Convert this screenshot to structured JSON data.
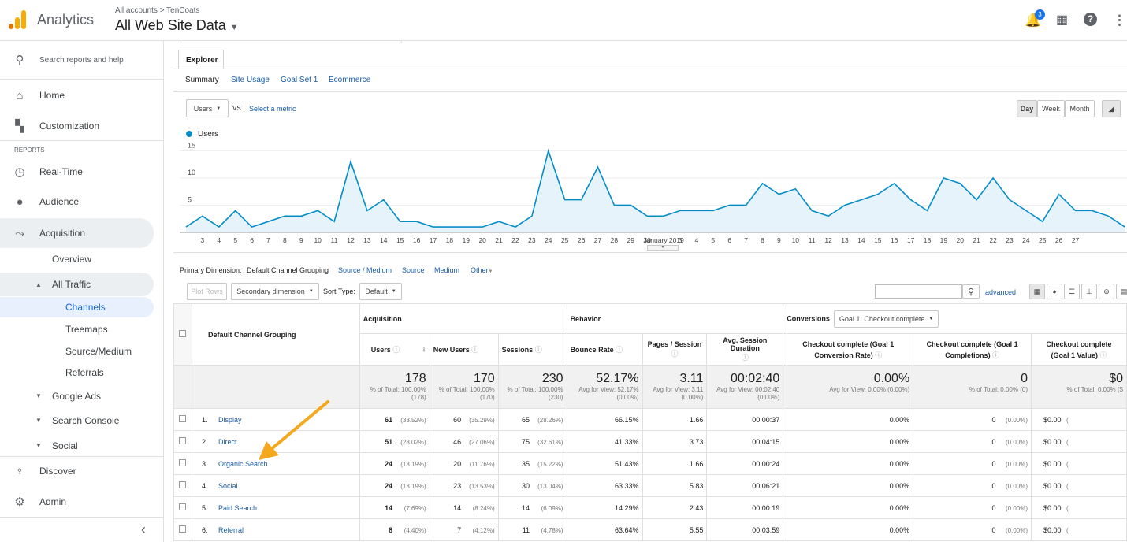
{
  "app": {
    "name": "Analytics",
    "breadcrumb": "All accounts  >  TenCoats",
    "view": "All Web Site Data",
    "notification_count": "3"
  },
  "colors": {
    "accent": "#1a73e8",
    "logo_orange": "#f9ab00",
    "logo_dark": "#e37400",
    "line": "#058dc7",
    "link": "#1a5ca5"
  },
  "sidebar": {
    "search_placeholder": "Search reports and help",
    "home": "Home",
    "customization": "Customization",
    "reports_heading": "REPORTS",
    "realtime": "Real-Time",
    "audience": "Audience",
    "acquisition": "Acquisition",
    "overview": "Overview",
    "all_traffic": "All Traffic",
    "channels": "Channels",
    "treemaps": "Treemaps",
    "source_medium": "Source/Medium",
    "referrals": "Referrals",
    "google_ads": "Google Ads",
    "search_console": "Search Console",
    "social": "Social",
    "discover": "Discover",
    "admin": "Admin",
    "collapse": "‹"
  },
  "explorer": {
    "tab": "Explorer",
    "subtabs": [
      "Summary",
      "Site Usage",
      "Goal Set 1",
      "Ecommerce"
    ]
  },
  "metric": {
    "select": "Users",
    "vs": "VS.",
    "select_metric": "Select a metric",
    "legend": "Users"
  },
  "range": {
    "day": "Day",
    "week": "Week",
    "month": "Month"
  },
  "chart_data": {
    "type": "area",
    "series": [
      {
        "name": "Users",
        "values": [
          1,
          3,
          1,
          4,
          1,
          2,
          3,
          3,
          4,
          2,
          13,
          4,
          6,
          2,
          2,
          1,
          1,
          1,
          1,
          2,
          1,
          3,
          15,
          6,
          6,
          12,
          5,
          5,
          3,
          3,
          4,
          4,
          4,
          5,
          5,
          9,
          7,
          8,
          4,
          3,
          5,
          6,
          7,
          9,
          6,
          4,
          10,
          9,
          6,
          10,
          6,
          4,
          2,
          7,
          4,
          4,
          3,
          1
        ]
      }
    ],
    "x_tick_labels": [
      "3",
      "4",
      "5",
      "6",
      "7",
      "8",
      "9",
      "10",
      "11",
      "12",
      "13",
      "14",
      "15",
      "16",
      "17",
      "18",
      "19",
      "20",
      "21",
      "22",
      "23",
      "24",
      "25",
      "26",
      "27",
      "28",
      "29",
      "30",
      "January 2019",
      "3",
      "4",
      "5",
      "6",
      "7",
      "8",
      "9",
      "10",
      "11",
      "12",
      "13",
      "14",
      "15",
      "16",
      "17",
      "18",
      "19",
      "20",
      "21",
      "22",
      "23",
      "24",
      "25",
      "26",
      "27"
    ],
    "y_ticks": [
      "15",
      "10",
      "5"
    ],
    "ylim": [
      0,
      16
    ]
  },
  "dimensions": {
    "label": "Primary Dimension:",
    "active": "Default Channel Grouping",
    "others": [
      "Source / Medium",
      "Source",
      "Medium",
      "Other"
    ]
  },
  "controls": {
    "plot_rows": "Plot Rows",
    "secondary": "Secondary dimension",
    "sort_type": "Sort Type:",
    "sort_value": "Default",
    "advanced": "advanced"
  },
  "table": {
    "dim_header": "Default Channel Grouping",
    "groups": {
      "acquisition": "Acquisition",
      "behavior": "Behavior",
      "conversions": "Conversions",
      "goal_select": "Goal 1: Checkout complete"
    },
    "columns": [
      "Users",
      "New Users",
      "Sessions",
      "Bounce Rate",
      "Pages / Session",
      "Avg. Session Duration",
      "Checkout complete (Goal 1 Conversion Rate)",
      "Checkout complete (Goal 1 Completions)",
      "Checkout complete (Goal 1 Value)"
    ],
    "totals": {
      "users": "178",
      "users_sub": "% of Total: 100.00% (178)",
      "new_users": "170",
      "new_users_sub": "% of Total: 100.00% (170)",
      "sessions": "230",
      "sessions_sub": "% of Total: 100.00% (230)",
      "bounce": "52.17%",
      "bounce_sub": "Avg for View: 52.17% (0.00%)",
      "pages": "3.11",
      "pages_sub": "Avg for View: 3.11 (0.00%)",
      "duration": "00:02:40",
      "duration_sub": "Avg for View: 00:02:40 (0.00%)",
      "conv": "0.00%",
      "conv_sub": "Avg for View: 0.00% (0.00%)",
      "completions": "0",
      "completions_sub": "% of Total: 0.00% (0)",
      "value": "$0",
      "value_sub": "% of Total: 0.00% ($"
    },
    "rows": [
      {
        "idx": "1.",
        "name": "Display",
        "users": "61",
        "users_pct": "(33.52%)",
        "new": "60",
        "new_pct": "(35.29%)",
        "sess": "65",
        "sess_pct": "(28.26%)",
        "bounce": "66.15%",
        "pages": "1.66",
        "dur": "00:00:37",
        "conv": "0.00%",
        "comp": "0",
        "comp_pct": "(0.00%)",
        "val": "$0.00",
        "val_pct": "("
      },
      {
        "idx": "2.",
        "name": "Direct",
        "users": "51",
        "users_pct": "(28.02%)",
        "new": "46",
        "new_pct": "(27.06%)",
        "sess": "75",
        "sess_pct": "(32.61%)",
        "bounce": "41.33%",
        "pages": "3.73",
        "dur": "00:04:15",
        "conv": "0.00%",
        "comp": "0",
        "comp_pct": "(0.00%)",
        "val": "$0.00",
        "val_pct": "("
      },
      {
        "idx": "3.",
        "name": "Organic Search",
        "users": "24",
        "users_pct": "(13.19%)",
        "new": "20",
        "new_pct": "(11.76%)",
        "sess": "35",
        "sess_pct": "(15.22%)",
        "bounce": "51.43%",
        "pages": "1.66",
        "dur": "00:00:24",
        "conv": "0.00%",
        "comp": "0",
        "comp_pct": "(0.00%)",
        "val": "$0.00",
        "val_pct": "("
      },
      {
        "idx": "4.",
        "name": "Social",
        "users": "24",
        "users_pct": "(13.19%)",
        "new": "23",
        "new_pct": "(13.53%)",
        "sess": "30",
        "sess_pct": "(13.04%)",
        "bounce": "63.33%",
        "pages": "5.83",
        "dur": "00:06:21",
        "conv": "0.00%",
        "comp": "0",
        "comp_pct": "(0.00%)",
        "val": "$0.00",
        "val_pct": "("
      },
      {
        "idx": "5.",
        "name": "Paid Search",
        "users": "14",
        "users_pct": "(7.69%)",
        "new": "14",
        "new_pct": "(8.24%)",
        "sess": "14",
        "sess_pct": "(6.09%)",
        "bounce": "14.29%",
        "pages": "2.43",
        "dur": "00:00:19",
        "conv": "0.00%",
        "comp": "0",
        "comp_pct": "(0.00%)",
        "val": "$0.00",
        "val_pct": "("
      },
      {
        "idx": "6.",
        "name": "Referral",
        "users": "8",
        "users_pct": "(4.40%)",
        "new": "7",
        "new_pct": "(4.12%)",
        "sess": "11",
        "sess_pct": "(4.78%)",
        "bounce": "63.64%",
        "pages": "5.55",
        "dur": "00:03:59",
        "conv": "0.00%",
        "comp": "0",
        "comp_pct": "(0.00%)",
        "val": "$0.00",
        "val_pct": "("
      }
    ]
  }
}
